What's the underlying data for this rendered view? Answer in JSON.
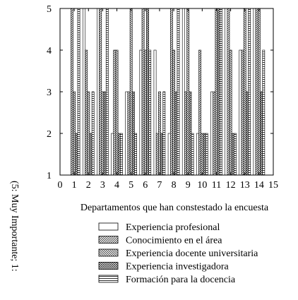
{
  "chart_data": {
    "type": "bar",
    "title": "",
    "xlabel": "Departamentos que han constestado la encuesta",
    "ylabel": "(5: Muy Importante; 1:",
    "xlim": [
      0,
      15
    ],
    "ylim": [
      1,
      5
    ],
    "x_ticks": [
      "0",
      "1",
      "2",
      "3",
      "4",
      "5",
      "6",
      "7",
      "8",
      "9",
      "10",
      "11",
      "12",
      "13",
      "14",
      "15"
    ],
    "y_ticks": [
      "1",
      "2",
      "3",
      "4",
      "5"
    ],
    "categories": [
      "1",
      "2",
      "3",
      "4",
      "5",
      "6",
      "7",
      "8",
      "9",
      "10",
      "11",
      "12",
      "13",
      "14"
    ],
    "legend_position": "bottom",
    "series": [
      {
        "name": "Experiencia profesional",
        "pattern": "blank",
        "values": [
          1,
          5,
          5,
          2,
          3,
          4,
          4,
          2,
          5,
          2,
          3,
          5,
          4,
          5
        ]
      },
      {
        "name": "Conocimiento en el área",
        "pattern": "diag-right",
        "values": [
          5,
          4,
          5,
          4,
          3,
          5,
          2,
          5,
          3,
          4,
          3,
          5,
          4,
          5
        ]
      },
      {
        "name": "Experiencia docente universitaria",
        "pattern": "diag-left",
        "values": [
          3,
          3,
          3,
          4,
          5,
          4,
          3,
          4,
          5,
          2,
          5,
          4,
          5,
          5
        ]
      },
      {
        "name": "Experiencia investigadora",
        "pattern": "cross",
        "values": [
          2,
          2,
          3,
          2,
          3,
          5,
          2,
          3,
          3,
          2,
          5,
          2,
          3,
          3
        ]
      },
      {
        "name": "Formación para la docencia",
        "pattern": "horizontal",
        "values": [
          5,
          3,
          5,
          2,
          2,
          4,
          3,
          5,
          2,
          2,
          5,
          2,
          5,
          4
        ]
      }
    ]
  }
}
